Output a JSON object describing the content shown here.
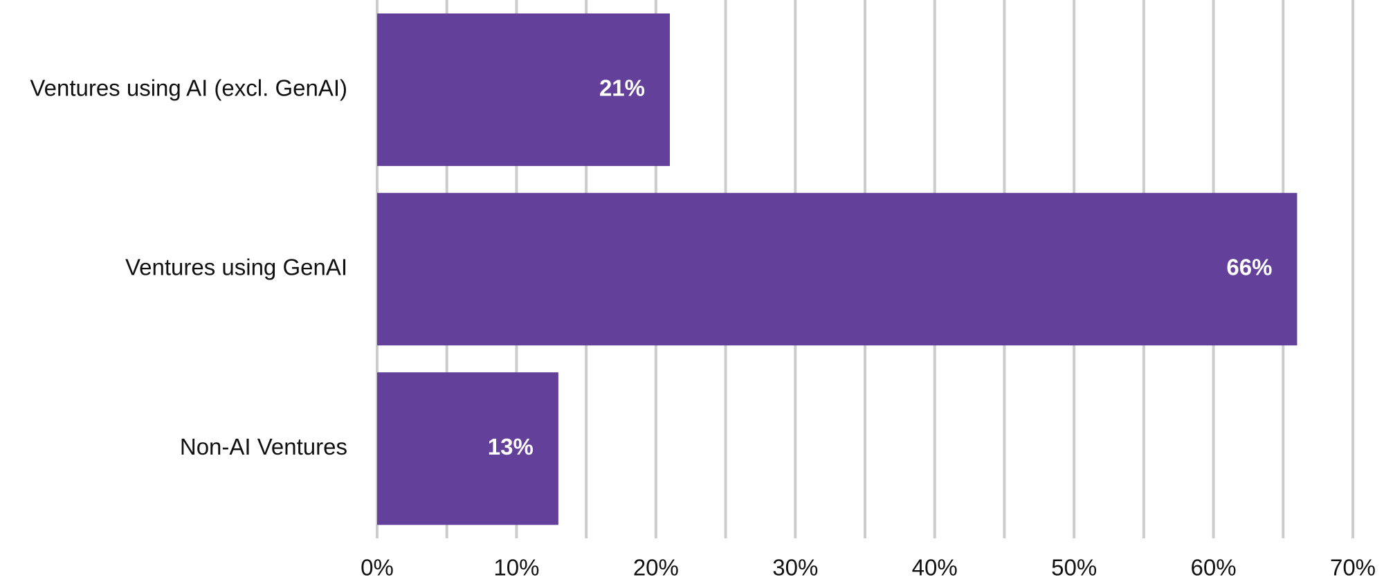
{
  "chart_data": {
    "type": "hbar",
    "categories": [
      "Ventures using AI (excl. GenAI)",
      "Ventures using GenAI",
      "Non-AI Ventures"
    ],
    "values": [
      21,
      66,
      13
    ],
    "value_labels": [
      "21%",
      "66%",
      "13%"
    ],
    "color": "#634099",
    "xlim": [
      0,
      70
    ],
    "xticks": [
      {
        "value": 0,
        "label": "0%"
      },
      {
        "value": 10,
        "label": "10%"
      },
      {
        "value": 20,
        "label": "20%"
      },
      {
        "value": 30,
        "label": "30%"
      },
      {
        "value": 40,
        "label": "40%"
      },
      {
        "value": 50,
        "label": "50%"
      },
      {
        "value": 60,
        "label": "60%"
      },
      {
        "value": 70,
        "label": "70%"
      }
    ],
    "xminor": [
      5,
      15,
      25,
      35,
      45,
      55,
      65
    ],
    "grid": true
  }
}
